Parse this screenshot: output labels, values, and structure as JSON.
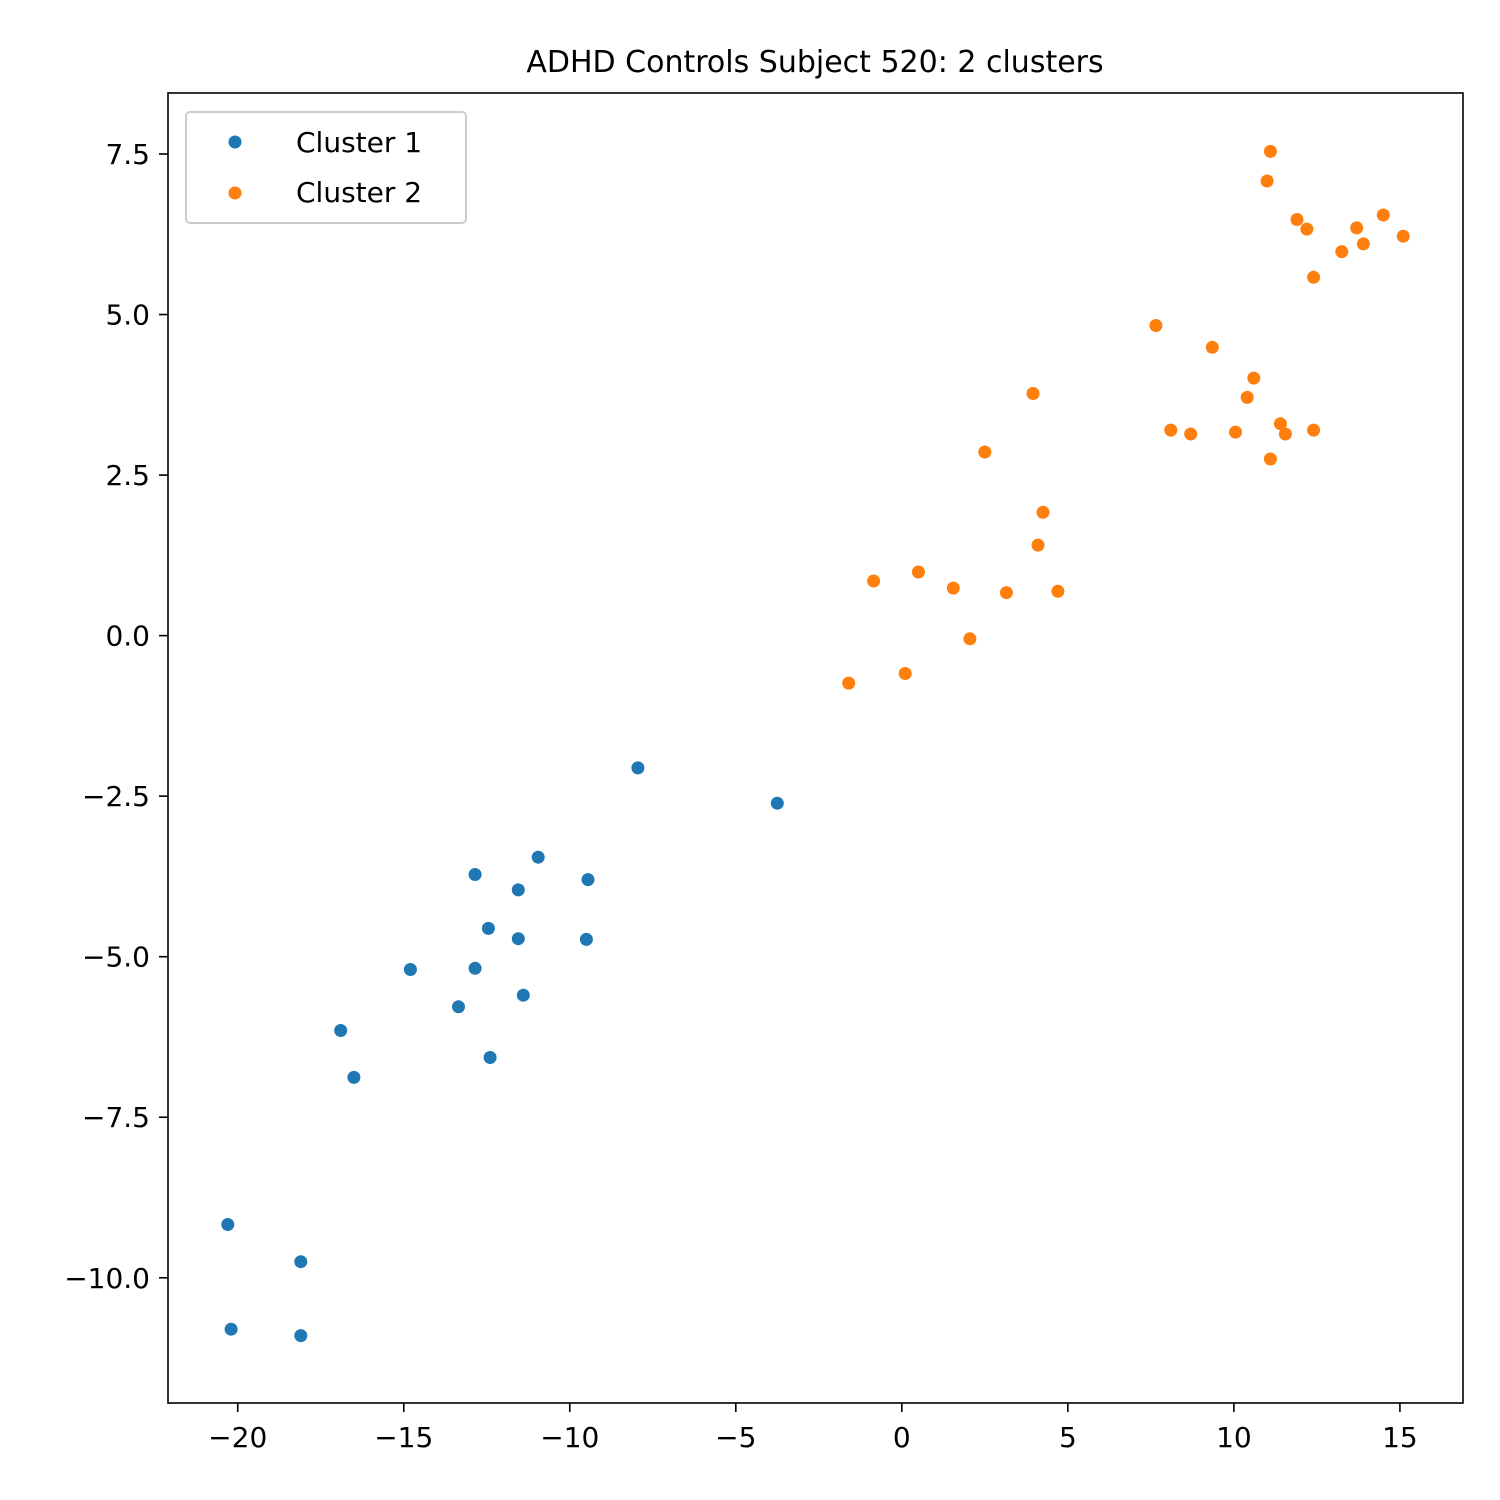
{
  "chart_data": {
    "type": "scatter",
    "title": "ADHD Controls Subject 520: 2 clusters",
    "xlabel": "",
    "ylabel": "",
    "xlim": [
      -22.1,
      16.9
    ],
    "ylim": [
      -11.95,
      8.45
    ],
    "xticks": [
      -20,
      -15,
      -10,
      -5,
      0,
      5,
      10,
      15
    ],
    "xtick_labels": [
      "−20",
      "−15",
      "−10",
      "−5",
      "0",
      "5",
      "10",
      "15"
    ],
    "yticks": [
      -10,
      -7.5,
      -5,
      -2.5,
      0,
      2.5,
      5,
      7.5
    ],
    "ytick_labels": [
      "−10.0",
      "−7.5",
      "−5.0",
      "−2.5",
      "0.0",
      "2.5",
      "5.0",
      "7.5"
    ],
    "grid": false,
    "legend_position": "top-left",
    "series": [
      {
        "name": "Cluster 1",
        "color": "#1f77b4",
        "points": [
          [
            -20.3,
            -9.17
          ],
          [
            -20.2,
            -10.8
          ],
          [
            -18.1,
            -9.75
          ],
          [
            -18.1,
            -10.9
          ],
          [
            -16.9,
            -6.15
          ],
          [
            -16.5,
            -6.88
          ],
          [
            -14.8,
            -5.2
          ],
          [
            -13.35,
            -5.78
          ],
          [
            -12.85,
            -5.18
          ],
          [
            -12.85,
            -3.72
          ],
          [
            -12.45,
            -4.56
          ],
          [
            -12.4,
            -6.57
          ],
          [
            -11.55,
            -4.72
          ],
          [
            -11.55,
            -3.96
          ],
          [
            -11.4,
            -5.6
          ],
          [
            -10.95,
            -3.45
          ],
          [
            -9.45,
            -3.8
          ],
          [
            -9.5,
            -4.73
          ],
          [
            -7.95,
            -2.06
          ],
          [
            -3.75,
            -2.61
          ]
        ]
      },
      {
        "name": "Cluster 2",
        "color": "#ff7f0e",
        "points": [
          [
            -1.6,
            -0.74
          ],
          [
            -0.85,
            0.85
          ],
          [
            0.1,
            -0.59
          ],
          [
            0.5,
            0.99
          ],
          [
            1.55,
            0.74
          ],
          [
            2.05,
            -0.05
          ],
          [
            2.5,
            2.86
          ],
          [
            3.15,
            0.67
          ],
          [
            3.95,
            3.77
          ],
          [
            4.1,
            1.41
          ],
          [
            4.25,
            1.92
          ],
          [
            4.7,
            0.69
          ],
          [
            7.65,
            4.83
          ],
          [
            8.1,
            3.2
          ],
          [
            8.7,
            3.14
          ],
          [
            9.35,
            4.49
          ],
          [
            10.05,
            3.17
          ],
          [
            10.4,
            3.71
          ],
          [
            10.6,
            4.01
          ],
          [
            11.1,
            2.75
          ],
          [
            11.4,
            3.3
          ],
          [
            11.55,
            3.14
          ],
          [
            12.4,
            3.2
          ],
          [
            12.4,
            5.58
          ],
          [
            11.0,
            7.08
          ],
          [
            11.1,
            7.54
          ],
          [
            11.9,
            6.48
          ],
          [
            12.2,
            6.33
          ],
          [
            13.25,
            5.98
          ],
          [
            13.7,
            6.35
          ],
          [
            13.9,
            6.1
          ],
          [
            14.5,
            6.55
          ],
          [
            15.1,
            6.22
          ]
        ]
      }
    ]
  }
}
